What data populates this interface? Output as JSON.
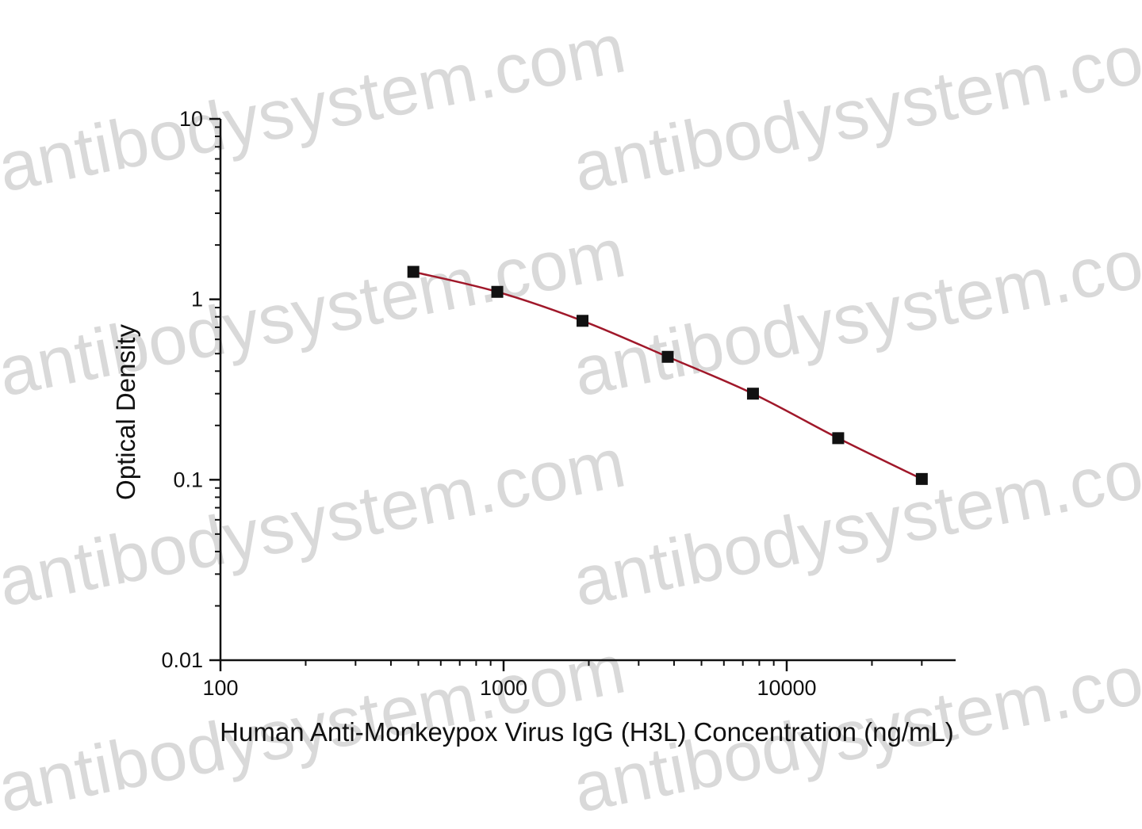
{
  "watermark": {
    "text": "antibodysystem.com",
    "color": "#d9d9d9"
  },
  "chart_data": {
    "type": "scatter",
    "title": "",
    "xlabel": "Human Anti-Monkeypox Virus IgG (H3L) Concentration (ng/mL)",
    "ylabel": "Optical Density",
    "x_scale": "log",
    "y_scale": "log",
    "xlim": [
      100,
      30000
    ],
    "ylim": [
      0.01,
      10
    ],
    "x_tick_labels": [
      "100",
      "1000",
      "10000"
    ],
    "x_tick_values": [
      100,
      1000,
      10000
    ],
    "y_tick_labels": [
      "10",
      "1",
      "0.1",
      "0.01"
    ],
    "y_tick_values": [
      10,
      1,
      0.1,
      0.01
    ],
    "grid": false,
    "series": [
      {
        "marker": "square",
        "marker_color": "#111111",
        "curve_color": "#a0182a",
        "x": [
          480,
          950,
          1900,
          3800,
          7600,
          15200,
          30000
        ],
        "y": [
          1.42,
          1.1,
          0.76,
          0.48,
          0.3,
          0.17,
          0.101
        ]
      }
    ]
  }
}
